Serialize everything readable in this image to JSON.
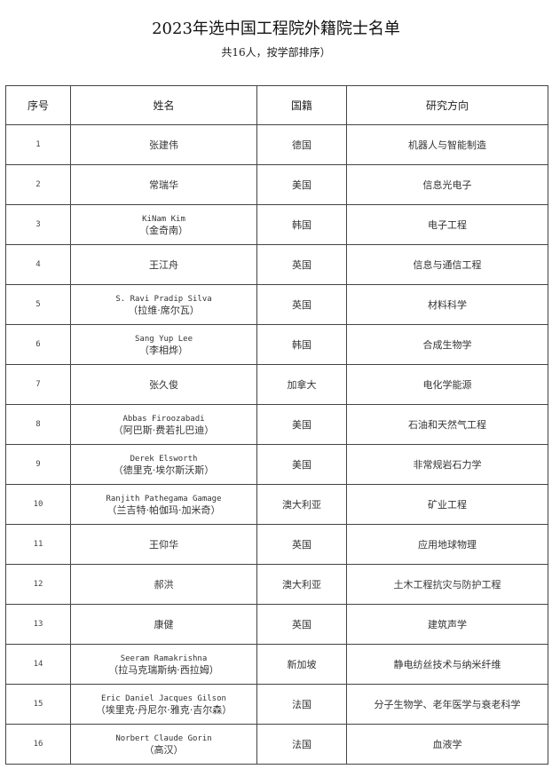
{
  "title": "2023年选中国工程院外籍院士名单",
  "subtitle": "共16人，按学部排序）",
  "headers": [
    "序号",
    "姓名",
    "国籍",
    "研究方向"
  ],
  "rows": [
    {
      "no": "1",
      "name_en": "",
      "name": "张建伟",
      "country": "德国",
      "field": "机器人与智能制造"
    },
    {
      "no": "2",
      "name_en": "",
      "name": "常瑞华",
      "country": "美国",
      "field": "信息光电子"
    },
    {
      "no": "3",
      "name_en": "KiNam Kim",
      "name": "（金奇南）",
      "country": "韩国",
      "field": "电子工程"
    },
    {
      "no": "4",
      "name_en": "",
      "name": "王江舟",
      "country": "英国",
      "field": "信息与通信工程"
    },
    {
      "no": "5",
      "name_en": "S. Ravi Pradip Silva",
      "name": "（拉维·席尔瓦）",
      "country": "英国",
      "field": "材料科学"
    },
    {
      "no": "6",
      "name_en": "Sang Yup Lee",
      "name": "（李相烨）",
      "country": "韩国",
      "field": "合成生物学"
    },
    {
      "no": "7",
      "name_en": "",
      "name": "张久俊",
      "country": "加拿大",
      "field": "电化学能源"
    },
    {
      "no": "8",
      "name_en": "Abbas Firoozabadi",
      "name": "（阿巴斯·费若扎巴迪）",
      "country": "美国",
      "field": "石油和天然气工程"
    },
    {
      "no": "9",
      "name_en": "Derek Elsworth",
      "name": "（德里克·埃尔斯沃斯）",
      "country": "美国",
      "field": "非常规岩石力学"
    },
    {
      "no": "10",
      "name_en": "Ranjith Pathegama Gamage",
      "name": "（兰吉特·帕伽玛·加米奇）",
      "country": "澳大利亚",
      "field": "矿业工程"
    },
    {
      "no": "11",
      "name_en": "",
      "name": "王仰华",
      "country": "英国",
      "field": "应用地球物理"
    },
    {
      "no": "12",
      "name_en": "",
      "name": "郝洪",
      "country": "澳大利亚",
      "field": "土木工程抗灾与防护工程"
    },
    {
      "no": "13",
      "name_en": "",
      "name": "康健",
      "country": "英国",
      "field": "建筑声学"
    },
    {
      "no": "14",
      "name_en": "Seeram Ramakrishna",
      "name": "（拉马克瑞斯纳·西拉姆）",
      "country": "新加坡",
      "field": "静电纺丝技术与纳米纤维"
    },
    {
      "no": "15",
      "name_en": "Eric Daniel Jacques Gilson",
      "name": "（埃里克·丹尼尔·雅克·吉尔森）",
      "country": "法国",
      "field": "分子生物学、老年医学与衰老科学"
    },
    {
      "no": "16",
      "name_en": "Norbert Claude Gorin",
      "name": "（高汉）",
      "country": "法国",
      "field": "血液学"
    }
  ]
}
